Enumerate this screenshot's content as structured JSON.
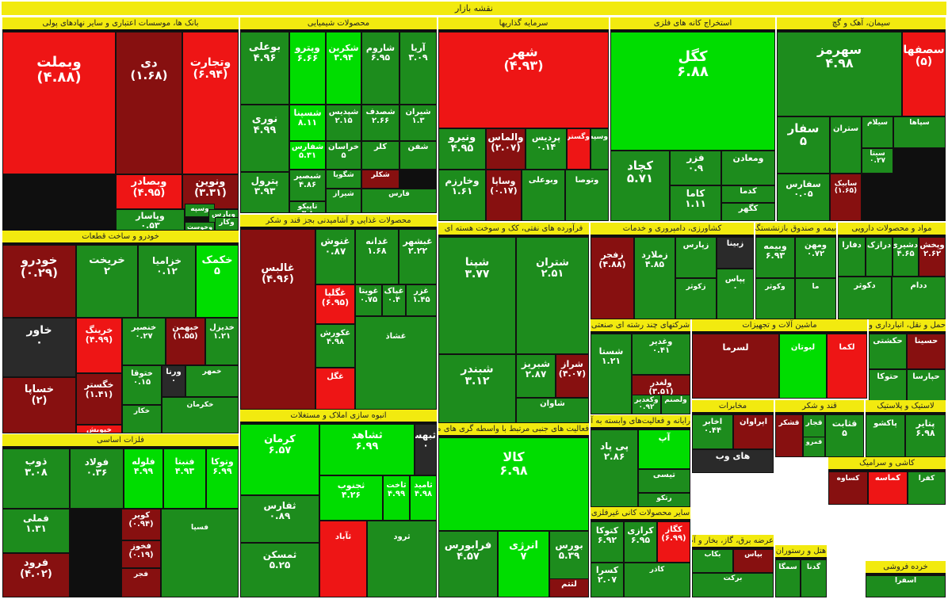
{
  "title": "نقشه بازار",
  "palette": {
    "bright_green": "#00dd00",
    "green": "#1d8c1d",
    "dark_red": "#871010",
    "red": "#ee1515",
    "neutral": "#2a2a2a",
    "header": "#f2ea0f"
  },
  "sections": {
    "banks": {
      "title": "بانک ها، موسسات اعتباری و سایر نهادهای پولی",
      "tiles": [
        {
          "name": "وبملت",
          "value": "(۴.۸۸)"
        },
        {
          "name": "دی",
          "value": "(۱.۶۸)"
        },
        {
          "name": "وتجارت",
          "value": "(۶.۹۴)"
        },
        {
          "name": "وبصادر",
          "value": "(۴.۹۵)"
        },
        {
          "name": "ونوین",
          "value": "(۳.۳۱)"
        },
        {
          "name": "وپاسار",
          "value": "۰.۵۳"
        },
        {
          "name": "وسپه",
          "value": ""
        },
        {
          "name": "وپارس",
          "value": "۰.۱۷"
        },
        {
          "name": "وکار",
          "value": ""
        },
        {
          "name": "وخوست",
          "value": ""
        }
      ]
    },
    "chemicals": {
      "title": "محصولات شیمیایی",
      "tiles": [
        {
          "name": "بوعلی",
          "value": "۴.۹۶"
        },
        {
          "name": "وپترو",
          "value": "۶.۶۶"
        },
        {
          "name": "شکربن",
          "value": "۳.۹۴"
        },
        {
          "name": "شاروم",
          "value": "۶.۹۵"
        },
        {
          "name": "آریا",
          "value": "۳.۰۹"
        },
        {
          "name": "نوری",
          "value": "۴.۹۹"
        },
        {
          "name": "شسپنا",
          "value": "۸.۱۱"
        },
        {
          "name": "شپدیس",
          "value": "۲.۱۵"
        },
        {
          "name": "شصدف",
          "value": "۲.۶۶"
        },
        {
          "name": "شیران",
          "value": "۱.۳"
        },
        {
          "name": "شفارس",
          "value": "۵.۳۱"
        },
        {
          "name": "خراسان",
          "value": "۵"
        },
        {
          "name": "کلر",
          "value": ""
        },
        {
          "name": "شفن",
          "value": ""
        },
        {
          "name": "شگویا",
          "value": ""
        },
        {
          "name": "شکلر",
          "value": ""
        },
        {
          "name": "شبصیر",
          "value": "۴.۸۶"
        },
        {
          "name": "شیراز",
          "value": ""
        },
        {
          "name": "پترول",
          "value": "۳.۹۳"
        },
        {
          "name": "تاپیکو",
          "value": "۳.۸"
        },
        {
          "name": "فارس",
          "value": ""
        }
      ]
    },
    "investment": {
      "title": "سرمایه گذاریها",
      "tiles": [
        {
          "name": "شهر",
          "value": "(۴.۹۳)"
        },
        {
          "name": "ونیرو",
          "value": "۴.۹۵"
        },
        {
          "name": "والماس",
          "value": "(۲.۰۷)"
        },
        {
          "name": "پردیس",
          "value": "۰.۱۴"
        },
        {
          "name": "وگستر",
          "value": ""
        },
        {
          "name": "وسپه",
          "value": ""
        },
        {
          "name": "وخارزم",
          "value": "۱.۶۱"
        },
        {
          "name": "وساپا",
          "value": "(۰.۱۷)"
        },
        {
          "name": "وبوعلی",
          "value": ""
        },
        {
          "name": "وتوصا",
          "value": ""
        }
      ]
    },
    "metal_mining": {
      "title": "استخراج کانه های فلزی",
      "tiles": [
        {
          "name": "کگل",
          "value": "۶.۸۸"
        },
        {
          "name": "کچاد",
          "value": "۵.۷۱"
        },
        {
          "name": "فزر",
          "value": "۰.۹"
        },
        {
          "name": "ومعادن",
          "value": ""
        },
        {
          "name": "کاما",
          "value": "۱.۱۱"
        },
        {
          "name": "کدما",
          "value": ""
        },
        {
          "name": "کگهر",
          "value": ""
        }
      ]
    },
    "cement": {
      "title": "سیمان، آهک و گچ",
      "tiles": [
        {
          "name": "سهرمز",
          "value": "۴.۹۸"
        },
        {
          "name": "سصفها",
          "value": "(۵)"
        },
        {
          "name": "سفار",
          "value": "۵"
        },
        {
          "name": "ستران",
          "value": ""
        },
        {
          "name": "سیلام",
          "value": ""
        },
        {
          "name": "سپاها",
          "value": ""
        },
        {
          "name": "سیتا",
          "value": "۰.۲۷"
        },
        {
          "name": "سفارس",
          "value": "۰.۰۵"
        },
        {
          "name": "سابیک",
          "value": "(۱.۶۵)"
        }
      ]
    },
    "auto": {
      "title": "خودرو و ساخت قطعات",
      "tiles": [
        {
          "name": "خودرو",
          "value": "(۰.۲۹)"
        },
        {
          "name": "خریخت",
          "value": "۲"
        },
        {
          "name": "خزامیا",
          "value": "۰.۱۲"
        },
        {
          "name": "خکمک",
          "value": "۵"
        },
        {
          "name": "خاور",
          "value": "۰"
        },
        {
          "name": "خرینگ",
          "value": "(۴.۹۹)"
        },
        {
          "name": "خنصیر",
          "value": "۰.۲۷"
        },
        {
          "name": "خبهمن",
          "value": "(۱.۵۵)"
        },
        {
          "name": "خدیزل",
          "value": "۱.۲۱"
        },
        {
          "name": "خگستر",
          "value": "(۱.۴۱)"
        },
        {
          "name": "ختوقا",
          "value": "۰.۱۵"
        },
        {
          "name": "ورنا",
          "value": "۰"
        },
        {
          "name": "خمهر",
          "value": ""
        },
        {
          "name": "خساپا",
          "value": "(۲)"
        },
        {
          "name": "خپویش",
          "value": "(۴.۹۹)"
        },
        {
          "name": "خکار",
          "value": ""
        },
        {
          "name": "خکرمان",
          "value": ""
        }
      ]
    },
    "food": {
      "title": "محصولات غذایی و آشامیدنی بجز قند و شکر",
      "tiles": [
        {
          "name": "غالبس",
          "value": "(۴.۹۶)"
        },
        {
          "name": "غنوش",
          "value": "۰.۸۷"
        },
        {
          "name": "غدانه",
          "value": "۱.۶۸"
        },
        {
          "name": "غبشهر",
          "value": "۲.۲۲"
        },
        {
          "name": "غگلپا",
          "value": "(۶.۹۵)"
        },
        {
          "name": "غویتا",
          "value": "۰.۷۵"
        },
        {
          "name": "غپاک",
          "value": "۰.۴"
        },
        {
          "name": "غزر",
          "value": "۱.۴۵"
        },
        {
          "name": "غکورش",
          "value": "۴.۹۸"
        },
        {
          "name": "غگل",
          "value": ""
        },
        {
          "name": "غشاذ",
          "value": ""
        }
      ]
    },
    "refinery": {
      "title": "فرآورده های نفتی، کک و سوخت هسته ای",
      "tiles": [
        {
          "name": "شپنا",
          "value": "۳.۷۷"
        },
        {
          "name": "شتران",
          "value": "۲.۵۱"
        },
        {
          "name": "شبندر",
          "value": "۳.۱۲"
        },
        {
          "name": "شبریز",
          "value": "۲.۸۷"
        },
        {
          "name": "شراز",
          "value": "(۴.۰۷)"
        },
        {
          "name": "شاوان",
          "value": ""
        }
      ]
    },
    "pharma": {
      "title": "مواد و محصولات دارویی",
      "tiles": [
        {
          "name": "دفارا",
          "value": ""
        },
        {
          "name": "درازک",
          "value": ""
        },
        {
          "name": "دشیری",
          "value": "۴.۶۵"
        },
        {
          "name": "وپخش",
          "value": "۲.۶۲"
        },
        {
          "name": "دکوثر",
          "value": ""
        },
        {
          "name": "ددام",
          "value": ""
        }
      ]
    },
    "insurance": {
      "title": "بیمه و صندوق بازنشستگی",
      "tiles": [
        {
          "name": "وبیمه",
          "value": "۶.۹۳"
        },
        {
          "name": "ومهن",
          "value": "۰.۷۲"
        },
        {
          "name": "وکوثر",
          "value": ""
        },
        {
          "name": "ما",
          "value": ""
        }
      ]
    },
    "agri": {
      "title": "کشاورزی، دامپروری و خدمات",
      "tiles": [
        {
          "name": "زفجر",
          "value": "(۴.۸۸)"
        },
        {
          "name": "زملارد",
          "value": "۴.۸۵"
        },
        {
          "name": "زپارس",
          "value": ""
        },
        {
          "name": "زکوثر",
          "value": ""
        },
        {
          "name": "زبینا",
          "value": ""
        },
        {
          "name": "پپاس",
          "value": "۰"
        },
        {
          "name": "دانا",
          "value": "۰.۹۸"
        }
      ]
    },
    "multi": {
      "title": "شرکتهای چند رشته ای صنعتی",
      "tiles": [
        {
          "name": "شستا",
          "value": "۱.۲۱"
        },
        {
          "name": "وغدیر",
          "value": "۰.۴۱"
        },
        {
          "name": "ولغدر",
          "value": "(۳.۵۱)"
        },
        {
          "name": "وبانک",
          "value": ""
        },
        {
          "name": "وکغدیر",
          "value": "۰.۹۲"
        },
        {
          "name": "ولصنم",
          "value": ""
        },
        {
          "name": "وامید",
          "value": ""
        }
      ]
    },
    "transport": {
      "title": "حمل و نقل، انبارداری و ارتباطات",
      "tiles": [
        {
          "name": "حکشتی",
          "value": ""
        },
        {
          "name": "حسینا",
          "value": ""
        },
        {
          "name": "حتوکا",
          "value": ""
        },
        {
          "name": "حپارسا",
          "value": ""
        }
      ]
    },
    "machinery": {
      "title": "ماشین آلات و تجهیزات",
      "tiles": [
        {
          "name": "لسرما",
          "value": ""
        },
        {
          "name": "لبوتان",
          "value": ""
        },
        {
          "name": "لکما",
          "value": ""
        }
      ]
    },
    "telecom": {
      "title": "مخابرات",
      "tiles": [
        {
          "name": "اخابر",
          "value": "۰.۴۴"
        },
        {
          "name": "های وب",
          "value": ""
        },
        {
          "name": "اپراوان",
          "value": ""
        }
      ]
    },
    "construction": {
      "title": "انبوه سازی املاک و مستغلات",
      "tiles": [
        {
          "name": "کرمان",
          "value": "۶.۵۷"
        },
        {
          "name": "ثشاهد",
          "value": "۶.۹۹"
        },
        {
          "name": "ثبهساز",
          "value": "۰"
        },
        {
          "name": "ثجنوب",
          "value": "۴.۲۶"
        },
        {
          "name": "ثاخت",
          "value": "۴.۹۹"
        },
        {
          "name": "ثامید",
          "value": "۴.۹۸"
        },
        {
          "name": "ثفارس",
          "value": "۰.۸۹"
        },
        {
          "name": "ثمسکن",
          "value": "۵.۲۵"
        },
        {
          "name": "ثآباد",
          "value": ""
        },
        {
          "name": "ثرود",
          "value": ""
        }
      ]
    },
    "basic_metals": {
      "title": "فلزات اساسی",
      "tiles": [
        {
          "name": "ذوب",
          "value": "۳.۰۸"
        },
        {
          "name": "فولاد",
          "value": "۰.۳۶"
        },
        {
          "name": "فلوله",
          "value": "۴.۹۹"
        },
        {
          "name": "فنبتا",
          "value": "۴.۹۳"
        },
        {
          "name": "وتوکا",
          "value": "۶.۹۹"
        },
        {
          "name": "فملی",
          "value": "۱.۳۱"
        },
        {
          "name": "کویر",
          "value": "(۰.۹۴)"
        },
        {
          "name": "فخوز",
          "value": "(۰.۱۹)"
        },
        {
          "name": "فرود",
          "value": "(۴.۰۲)"
        },
        {
          "name": "فجر",
          "value": ""
        },
        {
          "name": "فسپا",
          "value": ""
        }
      ]
    },
    "finance_aux": {
      "title": "فعالیت های جنبی مرتبط با واسطه گری های مالی",
      "tiles": [
        {
          "name": "کالا",
          "value": "۶.۹۸"
        },
        {
          "name": "فرابورس",
          "value": "۴.۵۷"
        },
        {
          "name": "انرژی",
          "value": "۷"
        },
        {
          "name": "بورس",
          "value": "۵.۳۹"
        },
        {
          "name": "اتمام",
          "value": ""
        },
        {
          "name": "لتتم",
          "value": ""
        }
      ]
    },
    "computer": {
      "title": "رایانه و فعالیت‌های وابسته به آن",
      "tiles": [
        {
          "name": "پی پاد",
          "value": "۲.۸۶"
        },
        {
          "name": "آپ",
          "value": ""
        },
        {
          "name": "تیسی",
          "value": ""
        },
        {
          "name": "رتکو",
          "value": ""
        }
      ]
    },
    "other_mining": {
      "title": "سایر محصولات کانی غیرفلزی",
      "tiles": [
        {
          "name": "کتوکا",
          "value": "۶.۹۲"
        },
        {
          "name": "کرازی",
          "value": "۶.۹۵"
        },
        {
          "name": "کگاز",
          "value": "(۶.۹۹)"
        },
        {
          "name": "کسرا",
          "value": "۲.۰۷"
        },
        {
          "name": "کاذر",
          "value": ""
        }
      ]
    },
    "sugar": {
      "title": "قند و شکر",
      "tiles": [
        {
          "name": "قشکر",
          "value": ""
        },
        {
          "name": "قجار",
          "value": ""
        },
        {
          "name": "قثابت",
          "value": "۵"
        },
        {
          "name": "قمرو",
          "value": ""
        }
      ]
    },
    "plastic": {
      "title": "لاستیک و پلاستیک",
      "tiles": [
        {
          "name": "پاکشو",
          "value": ""
        },
        {
          "name": "پتایر",
          "value": "۶.۹۸"
        }
      ]
    },
    "tile": {
      "title": "کاشی و سرامیک",
      "tiles": [
        {
          "name": "کساوه",
          "value": ""
        },
        {
          "name": "کماسه",
          "value": ""
        },
        {
          "name": "کفرا",
          "value": ""
        }
      ]
    },
    "utilities": {
      "title": "عرضه برق، گاز، بخار و آب گرم",
      "tiles": [
        {
          "name": "بکاب",
          "value": ""
        },
        {
          "name": "بپاس",
          "value": ""
        },
        {
          "name": "برکت",
          "value": ""
        }
      ]
    },
    "hotel": {
      "title": "هتل و رستوران",
      "tiles": [
        {
          "name": "سمگا",
          "value": ""
        },
        {
          "name": "گدنا",
          "value": ""
        }
      ]
    },
    "retail": {
      "title": "خرده فروشی",
      "tiles": [
        {
          "name": "اسفرا",
          "value": ""
        }
      ]
    }
  }
}
